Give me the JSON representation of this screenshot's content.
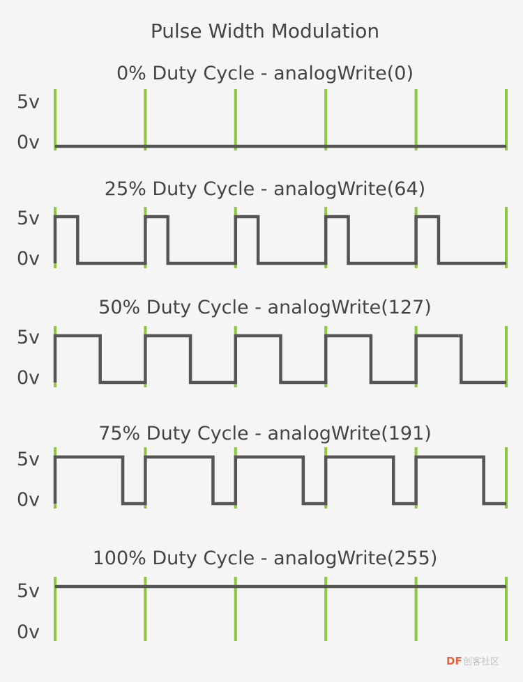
{
  "title": "Pulse Width Modulation",
  "axis_labels": {
    "high": "5v",
    "low": "0v"
  },
  "colors": {
    "background": "#f5f5f5",
    "signal": "#555555",
    "period_marker": "#8dc63f",
    "text": "#444444"
  },
  "panels": [
    {
      "label": "0% Duty Cycle - analogWrite(0)",
      "duty": 0.0
    },
    {
      "label": "25% Duty Cycle - analogWrite(64)",
      "duty": 0.25
    },
    {
      "label": "50% Duty Cycle - analogWrite(127)",
      "duty": 0.5
    },
    {
      "label": "75% Duty Cycle - analogWrite(191)",
      "duty": 0.75
    },
    {
      "label": "100% Duty Cycle - analogWrite(255)",
      "duty": 1.0
    }
  ],
  "periods_shown": 5,
  "watermark": {
    "brand": "DF",
    "text": "创客社区"
  }
}
